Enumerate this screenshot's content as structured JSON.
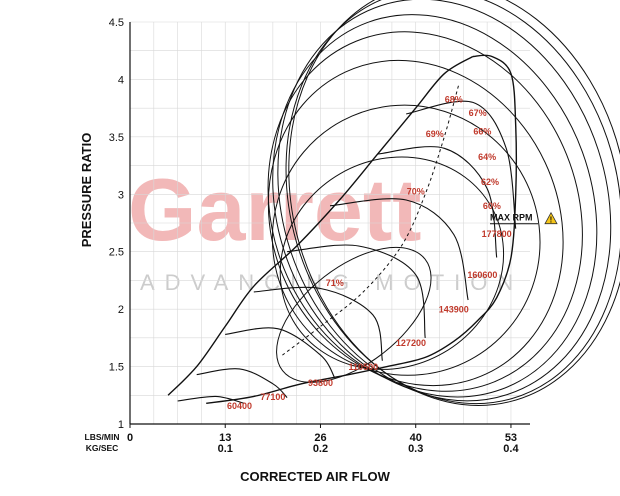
{
  "watermark": {
    "brand": "Garrett",
    "tagline": "ADVANCING MOTION",
    "color": "#f2b8b8"
  },
  "colors": {
    "axis": "#111111",
    "grid": "#d8d8d8",
    "curve": "#111111",
    "label": "#c0392b",
    "warning": "#f5c518"
  },
  "chart_data": {
    "type": "compressor-map",
    "ylabel": "PRESSURE RATIO",
    "xlabel": "CORRECTED AIR FLOW",
    "unit_labels": [
      "LBS/MIN",
      "KG/SEC"
    ],
    "ylim": [
      1,
      4.5
    ],
    "xlim": [
      0,
      0.42
    ],
    "y_ticks": [
      "1",
      "1.5",
      "2",
      "2.5",
      "3",
      "3.5",
      "4",
      "4.5"
    ],
    "x_ticks": [
      {
        "x": 0,
        "lbs": "0",
        "kg": ""
      },
      {
        "x": 0.1,
        "lbs": "13",
        "kg": "0.1"
      },
      {
        "x": 0.2,
        "lbs": "26",
        "kg": "0.2"
      },
      {
        "x": 0.3,
        "lbs": "40",
        "kg": "0.3"
      },
      {
        "x": 0.4,
        "lbs": "53",
        "kg": "0.4"
      }
    ],
    "grid": true,
    "surge_line": [
      [
        0.04,
        1.25
      ],
      [
        0.07,
        1.5
      ],
      [
        0.1,
        1.85
      ],
      [
        0.13,
        2.2
      ],
      [
        0.175,
        2.55
      ],
      [
        0.22,
        2.95
      ],
      [
        0.26,
        3.35
      ],
      [
        0.3,
        3.75
      ],
      [
        0.33,
        4.05
      ],
      [
        0.36,
        4.2
      ]
    ],
    "choke_line": [
      [
        0.36,
        4.2
      ],
      [
        0.38,
        4.2
      ],
      [
        0.4,
        4.05
      ],
      [
        0.405,
        3.6
      ],
      [
        0.405,
        3.0
      ],
      [
        0.4,
        2.45
      ],
      [
        0.385,
        2.1
      ],
      [
        0.365,
        1.9
      ],
      [
        0.34,
        1.72
      ],
      [
        0.31,
        1.58
      ],
      [
        0.27,
        1.5
      ],
      [
        0.23,
        1.43
      ],
      [
        0.18,
        1.35
      ],
      [
        0.13,
        1.24
      ],
      [
        0.08,
        1.18
      ]
    ],
    "speed_lines": [
      {
        "label": "60400",
        "points": [
          [
            0.05,
            1.2
          ],
          [
            0.09,
            1.24
          ],
          [
            0.12,
            1.18
          ]
        ],
        "label_at": [
          0.115,
          1.13
        ]
      },
      {
        "label": "77100",
        "points": [
          [
            0.07,
            1.43
          ],
          [
            0.115,
            1.48
          ],
          [
            0.15,
            1.35
          ],
          [
            0.165,
            1.23
          ]
        ],
        "label_at": [
          0.15,
          1.21
        ]
      },
      {
        "label": "93800",
        "points": [
          [
            0.1,
            1.78
          ],
          [
            0.155,
            1.83
          ],
          [
            0.2,
            1.6
          ],
          [
            0.215,
            1.4
          ]
        ],
        "label_at": [
          0.2,
          1.33
        ]
      },
      {
        "label": "110500",
        "points": [
          [
            0.13,
            2.15
          ],
          [
            0.2,
            2.18
          ],
          [
            0.255,
            1.95
          ],
          [
            0.265,
            1.55
          ]
        ],
        "label_at": [
          0.245,
          1.47
        ]
      },
      {
        "label": "127200",
        "points": [
          [
            0.165,
            2.5
          ],
          [
            0.24,
            2.55
          ],
          [
            0.3,
            2.3
          ],
          [
            0.31,
            1.75
          ]
        ],
        "label_at": [
          0.295,
          1.68
        ]
      },
      {
        "label": "143900",
        "points": [
          [
            0.21,
            2.9
          ],
          [
            0.29,
            2.95
          ],
          [
            0.34,
            2.65
          ],
          [
            0.355,
            2.08
          ]
        ],
        "label_at": [
          0.34,
          1.97
        ]
      },
      {
        "label": "160600",
        "points": [
          [
            0.26,
            3.35
          ],
          [
            0.33,
            3.4
          ],
          [
            0.375,
            3.05
          ],
          [
            0.385,
            2.45
          ]
        ],
        "label_at": [
          0.37,
          2.27
        ]
      },
      {
        "label": "177800",
        "points": [
          [
            0.29,
            3.7
          ],
          [
            0.36,
            3.8
          ],
          [
            0.395,
            3.4
          ],
          [
            0.405,
            2.7
          ]
        ],
        "label_at": [
          0.385,
          2.63
        ]
      }
    ],
    "efficiency_islands": [
      {
        "label": "71%",
        "center": [
          0.235,
          1.95
        ],
        "rx": 0.095,
        "ry": 0.42,
        "rot": -38,
        "label_at": [
          0.215,
          2.2
        ]
      },
      {
        "label": "70%",
        "center": [
          0.275,
          2.4
        ],
        "rx": 0.12,
        "ry": 0.9,
        "rot": -30,
        "label_at": [
          0.3,
          3.0
        ]
      },
      {
        "label": "69%",
        "center": [
          0.29,
          2.6
        ],
        "rx": 0.14,
        "ry": 1.18,
        "rot": -28,
        "label_at": [
          0.32,
          3.5
        ]
      },
      {
        "label": "68%",
        "center": [
          0.3,
          2.75
        ],
        "rx": 0.15,
        "ry": 1.45,
        "rot": -25,
        "label_at": [
          0.34,
          3.8
        ]
      },
      {
        "label": "67%",
        "center": [
          0.31,
          2.85
        ],
        "rx": 0.16,
        "ry": 1.6,
        "rot": -22,
        "label_at": [
          0.365,
          3.68
        ]
      },
      {
        "label": "66%",
        "center": [
          0.32,
          2.9
        ],
        "rx": 0.165,
        "ry": 1.7,
        "rot": -20,
        "label_at": [
          0.37,
          3.52
        ]
      },
      {
        "label": "64%",
        "center": [
          0.33,
          2.95
        ],
        "rx": 0.17,
        "ry": 1.78,
        "rot": -18,
        "label_at": [
          0.375,
          3.3
        ]
      },
      {
        "label": "62%",
        "center": [
          0.34,
          2.98
        ],
        "rx": 0.172,
        "ry": 1.83,
        "rot": -16,
        "label_at": [
          0.378,
          3.08
        ]
      },
      {
        "label": "60%",
        "center": [
          0.345,
          3.0
        ],
        "rx": 0.175,
        "ry": 1.86,
        "rot": -14,
        "label_at": [
          0.38,
          2.87
        ]
      }
    ],
    "peak_efficiency_line": [
      [
        0.16,
        1.6
      ],
      [
        0.2,
        1.85
      ],
      [
        0.245,
        2.15
      ],
      [
        0.285,
        2.55
      ],
      [
        0.31,
        3.0
      ],
      [
        0.33,
        3.5
      ],
      [
        0.345,
        3.95
      ]
    ],
    "annotation": {
      "text": "MAX RPM",
      "at": [
        0.378,
        2.77
      ],
      "warning_icon": true
    }
  }
}
